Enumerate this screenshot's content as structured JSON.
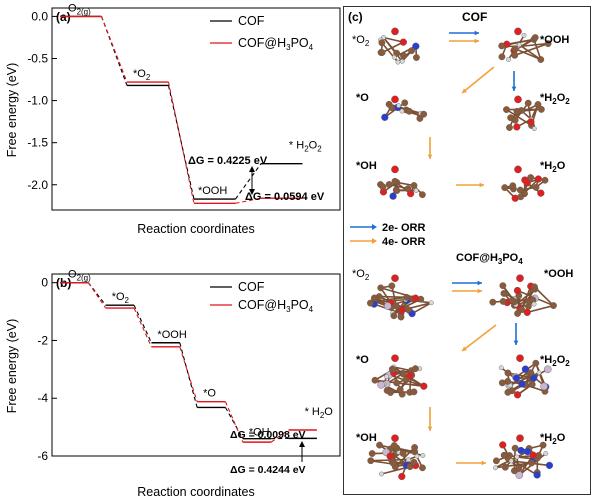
{
  "figure": {
    "panel_a_label": "(a)",
    "panel_b_label": "(b)",
    "panel_c_label": "(c)",
    "xlabel": "Reaction coordinates",
    "ylabel": "Free energy (eV)"
  },
  "legend": {
    "series1": "COF",
    "series2_main": "COF@H",
    "series2_sub1": "3",
    "series2_mid": "PO",
    "series2_sub2": "4"
  },
  "colors": {
    "cof": "#000000",
    "cof_h3po4": "#e0151b"
  },
  "panel_a": {
    "state_labels": [
      {
        "main": "O",
        "sub": "2(g)"
      },
      {
        "main": "*O",
        "sub": "2"
      },
      {
        "main": "*OOH",
        "sub": ""
      },
      {
        "main": "* H",
        "sub": "2",
        "post": "O",
        "post_sub": "2"
      }
    ],
    "dg_black": "ΔG = 0.4225 eV",
    "dg_red": "ΔG = 0.0594 eV"
  },
  "panel_b": {
    "state_labels": [
      {
        "main": "O",
        "sub": "2(g)"
      },
      {
        "main": "*O",
        "sub": "2"
      },
      {
        "main": "*OOH",
        "sub": ""
      },
      {
        "main": "*O",
        "sub": ""
      },
      {
        "main": "*OH",
        "sub": ""
      },
      {
        "main": "* H",
        "sub": "2",
        "post": "O",
        "post_sub": ""
      }
    ],
    "dg_black": "ΔG = 0.0098 eV",
    "dg_red": "ΔG = 0.4244 eV"
  },
  "panel_c": {
    "cof_title": "COF",
    "cof_h3po4_title": "COF@H3PO4",
    "species": [
      "*O2",
      "*OOH",
      "*O",
      "*H2O2",
      "*OH",
      "*H2O"
    ],
    "legend_2e": "2e- ORR",
    "legend_4e": "4e- ORR",
    "arrow_2e_color": "#1f6fd6",
    "arrow_4e_color": "#f2a03a"
  },
  "chart_data": [
    {
      "type": "line",
      "panel": "(a)",
      "xlabel": "Reaction coordinates",
      "ylabel": "Free energy (eV)",
      "ylim": [
        -2.3,
        0.1
      ],
      "yticks": [
        0.0,
        -0.5,
        -1.0,
        -1.5,
        -2.0
      ],
      "categories": [
        "O2(g)",
        "*O2",
        "*OOH",
        "* H2O2"
      ],
      "series": [
        {
          "name": "COF",
          "values": [
            0.0,
            -0.82,
            -2.17,
            -1.75
          ]
        },
        {
          "name": "COF@H3PO4",
          "values": [
            0.0,
            -0.78,
            -2.22,
            -2.16
          ]
        }
      ],
      "annotations": [
        "ΔG = 0.4225 eV",
        "ΔG = 0.0594 eV"
      ]
    },
    {
      "type": "line",
      "panel": "(b)",
      "xlabel": "Reaction coordinates",
      "ylabel": "Free energy (eV)",
      "ylim": [
        -6.0,
        0.3
      ],
      "yticks": [
        0,
        -2,
        -4,
        -6
      ],
      "categories": [
        "O2(g)",
        "*O2",
        "*OOH",
        "*O",
        "*OH",
        "* H2O"
      ],
      "series": [
        {
          "name": "COF",
          "values": [
            0.0,
            -0.78,
            -2.08,
            -4.32,
            -5.4,
            -5.39
          ]
        },
        {
          "name": "COF@H3PO4",
          "values": [
            0.0,
            -0.88,
            -2.22,
            -4.12,
            -5.52,
            -5.1
          ]
        }
      ],
      "annotations": [
        "ΔG = 0.0098 eV",
        "ΔG = 0.4244 eV"
      ]
    }
  ]
}
